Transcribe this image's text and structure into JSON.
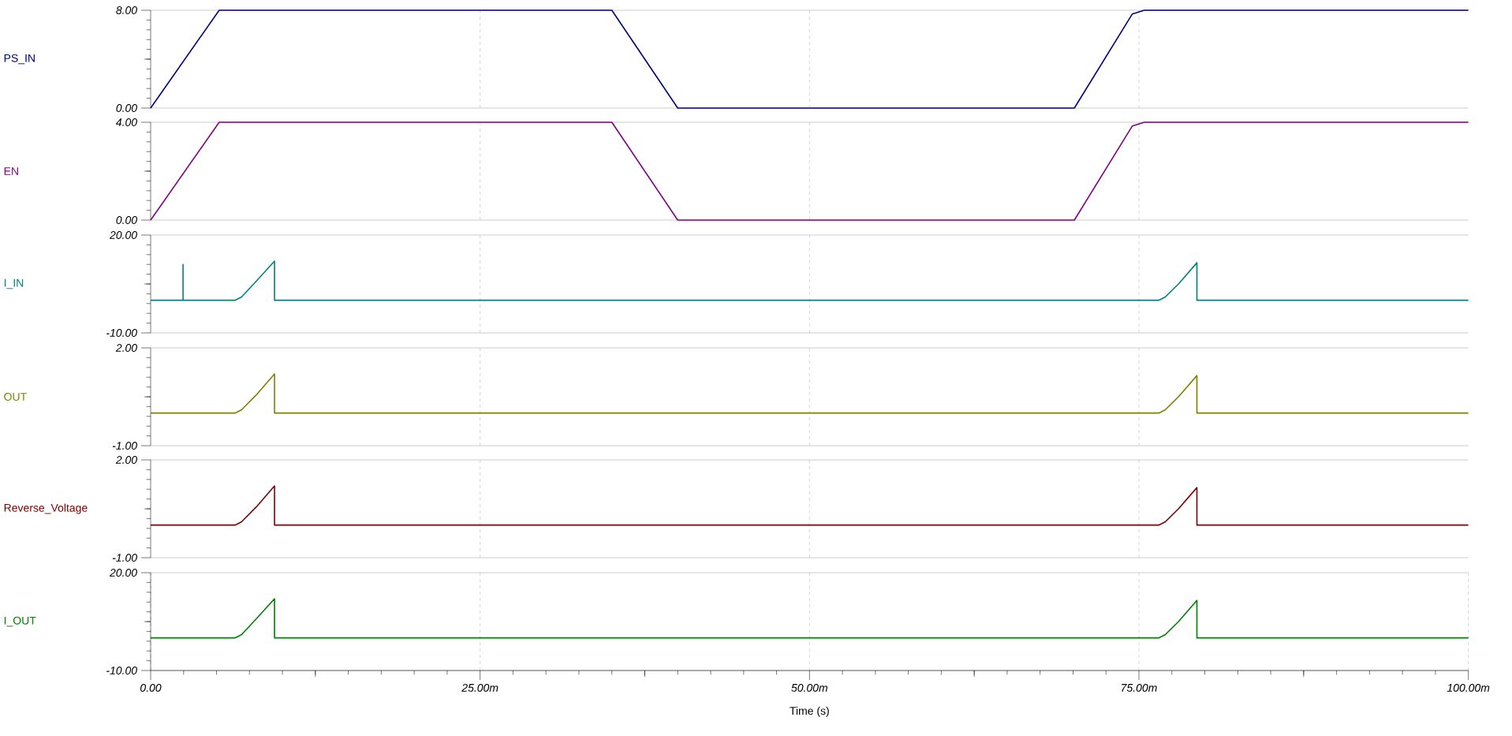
{
  "chart_data": [
    {
      "type": "line",
      "xlim": [
        0,
        100
      ],
      "ylim": [
        0,
        8
      ],
      "grid": true,
      "tick_labels": "y",
      "xticks": [
        {
          "value": 25,
          "label": null
        },
        {
          "value": 50,
          "label": null
        },
        {
          "value": 75,
          "label": null
        }
      ],
      "yticks": [
        {
          "value": 0,
          "label": "0.00"
        },
        {
          "value": 4,
          "label": null
        },
        {
          "value": 8,
          "label": "8.00"
        }
      ],
      "series": [
        {
          "name": "PS_IN",
          "color": "#000080",
          "x": [
            0,
            5.2,
            35,
            40,
            70.1,
            74.5,
            75.4,
            100
          ],
          "values": [
            0,
            8,
            8,
            0,
            0,
            7.7,
            8,
            8
          ]
        }
      ]
    },
    {
      "type": "line",
      "xlim": [
        0,
        100
      ],
      "ylim": [
        0,
        4
      ],
      "grid": true,
      "tick_labels": "y",
      "xticks": [
        {
          "value": 25,
          "label": null
        },
        {
          "value": 50,
          "label": null
        },
        {
          "value": 75,
          "label": null
        }
      ],
      "yticks": [
        {
          "value": 0,
          "label": "0.00"
        },
        {
          "value": 2,
          "label": null
        },
        {
          "value": 4,
          "label": "4.00"
        }
      ],
      "series": [
        {
          "name": "EN",
          "color": "#800080",
          "x": [
            0,
            5.2,
            35,
            40,
            70.1,
            74.5,
            75.4,
            100
          ],
          "values": [
            0,
            4,
            4,
            0,
            0,
            3.85,
            4,
            4
          ]
        }
      ]
    },
    {
      "type": "line",
      "xlim": [
        0,
        100
      ],
      "ylim": [
        -10,
        20
      ],
      "grid": true,
      "tick_labels": "y",
      "xticks": [
        {
          "value": 25,
          "label": null
        },
        {
          "value": 50,
          "label": null
        },
        {
          "value": 75,
          "label": null
        }
      ],
      "yticks": [
        {
          "value": -10,
          "label": "-10.00"
        },
        {
          "value": 5,
          "label": null
        },
        {
          "value": 20,
          "label": "20.00"
        }
      ],
      "series": [
        {
          "name": "I_IN",
          "color": "#008080",
          "x": [
            0,
            2.46,
            2.46,
            2.46,
            6.4,
            6.9,
            8,
            9.4,
            9.4,
            76.5,
            77,
            78,
            79.4,
            79.4,
            100
          ],
          "values": [
            0,
            0,
            11,
            0,
            0,
            1,
            5.8,
            12,
            0,
            0,
            1,
            5,
            11.5,
            0,
            0
          ]
        }
      ]
    },
    {
      "type": "line",
      "xlim": [
        0,
        100
      ],
      "ylim": [
        -1,
        2
      ],
      "grid": true,
      "tick_labels": "y",
      "xticks": [
        {
          "value": 25,
          "label": null
        },
        {
          "value": 50,
          "label": null
        },
        {
          "value": 75,
          "label": null
        }
      ],
      "yticks": [
        {
          "value": -1,
          "label": "-1.00"
        },
        {
          "value": 0.5,
          "label": null
        },
        {
          "value": 2,
          "label": "2.00"
        }
      ],
      "series": [
        {
          "name": "OUT",
          "color": "#808000",
          "x": [
            0,
            6.4,
            6.9,
            8,
            9.4,
            9.4,
            76.5,
            77,
            78,
            79.4,
            79.4,
            100
          ],
          "values": [
            0,
            0,
            0.1,
            0.55,
            1.2,
            0,
            0,
            0.1,
            0.5,
            1.15,
            0,
            0
          ]
        }
      ]
    },
    {
      "type": "line",
      "xlim": [
        0,
        100
      ],
      "ylim": [
        -1,
        2
      ],
      "grid": true,
      "tick_labels": "y",
      "xticks": [
        {
          "value": 25,
          "label": null
        },
        {
          "value": 50,
          "label": null
        },
        {
          "value": 75,
          "label": null
        }
      ],
      "yticks": [
        {
          "value": -1,
          "label": "-1.00"
        },
        {
          "value": 0.5,
          "label": null
        },
        {
          "value": 2,
          "label": "2.00"
        }
      ],
      "series": [
        {
          "name": "Reverse_Voltage",
          "color": "#800000",
          "x": [
            0,
            6.4,
            6.9,
            8,
            9.4,
            9.4,
            76.5,
            77,
            78,
            79.4,
            79.4,
            100
          ],
          "values": [
            0,
            0,
            0.1,
            0.55,
            1.2,
            0,
            0,
            0.1,
            0.5,
            1.15,
            0,
            0
          ]
        }
      ]
    },
    {
      "type": "line",
      "xlim": [
        0,
        100
      ],
      "ylim": [
        -10,
        20
      ],
      "grid": true,
      "xlabel": "Time (s)",
      "xticks": [
        {
          "value": 0,
          "label": "0.00"
        },
        {
          "value": 12.5,
          "label": null
        },
        {
          "value": 25,
          "label": "25.00m"
        },
        {
          "value": 37.5,
          "label": null
        },
        {
          "value": 50,
          "label": "50.00m"
        },
        {
          "value": 62.5,
          "label": null
        },
        {
          "value": 75,
          "label": "75.00m"
        },
        {
          "value": 87.5,
          "label": null
        },
        {
          "value": 100,
          "label": "100.00m"
        }
      ],
      "yticks": [
        {
          "value": -10,
          "label": "-10.00"
        },
        {
          "value": 5,
          "label": null
        },
        {
          "value": 20,
          "label": "20.00"
        }
      ],
      "series": [
        {
          "name": "I_OUT",
          "color": "#008000",
          "x": [
            0,
            6.4,
            6.9,
            8,
            9.4,
            9.4,
            76.5,
            77,
            78,
            79.4,
            79.4,
            100
          ],
          "values": [
            0,
            0,
            1,
            5.8,
            12,
            0,
            0,
            1,
            5,
            11.5,
            0,
            0
          ]
        }
      ]
    }
  ]
}
